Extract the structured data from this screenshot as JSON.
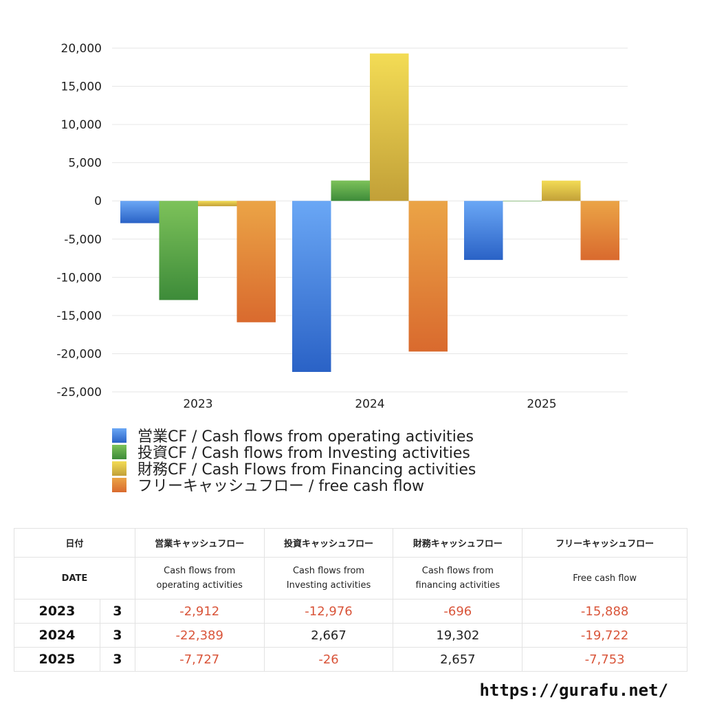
{
  "chart_data": {
    "type": "bar",
    "categories": [
      "2023",
      "2024",
      "2025"
    ],
    "ylim": [
      -25000,
      20000
    ],
    "yticks": [
      20000,
      15000,
      10000,
      5000,
      0,
      -5000,
      -10000,
      -15000,
      -20000,
      -25000
    ],
    "ytick_labels": [
      "20,000",
      "15,000",
      "10,000",
      "5,000",
      "0",
      "-5,000",
      "-10,000",
      "-15,000",
      "-20,000",
      "-25,000"
    ],
    "grid": true,
    "legend_position": "bottom",
    "series": [
      {
        "name": "営業CF / Cash flows from operating activities",
        "values": [
          -2912,
          -22389,
          -7727
        ],
        "color_top": "#6aa7f5",
        "color_bottom": "#2a62c6"
      },
      {
        "name": "投資CF / Cash flows from Investing activities",
        "values": [
          -12976,
          2667,
          -26
        ],
        "color_top": "#7dc25a",
        "color_bottom": "#3d8b39"
      },
      {
        "name": "財務CF / Cash Flows from Financing activities",
        "values": [
          -696,
          19302,
          2657
        ],
        "color_top": "#f3dc55",
        "color_bottom": "#c2a038"
      },
      {
        "name": "フリーキャッシュフロー / free cash flow",
        "values": [
          -15888,
          -19722,
          -7753
        ],
        "color_top": "#eba446",
        "color_bottom": "#d96a2e"
      }
    ]
  },
  "table": {
    "headers_ja": [
      "日付",
      "営業キャッシュフロー",
      "投資キャッシュフロー",
      "財務キャッシュフロー",
      "フリーキャッシュフロー"
    ],
    "headers_en": {
      "date": "DATE",
      "operating": [
        "Cash flows from",
        "operating activities"
      ],
      "investing": [
        "Cash flows from",
        "Investing activities"
      ],
      "financing": [
        "Cash flows from",
        "financing activities"
      ],
      "free": "Free cash flow"
    },
    "rows": [
      {
        "year": "2023",
        "month": "3",
        "operating": "-2,912",
        "investing": "-12,976",
        "financing": "-696",
        "free": "-15,888"
      },
      {
        "year": "2024",
        "month": "3",
        "operating": "-22,389",
        "investing": "2,667",
        "financing": "19,302",
        "free": "-19,722"
      },
      {
        "year": "2025",
        "month": "3",
        "operating": "-7,727",
        "investing": "-26",
        "financing": "2,657",
        "free": "-7,753"
      }
    ]
  },
  "footer": "https://gurafu.net/"
}
